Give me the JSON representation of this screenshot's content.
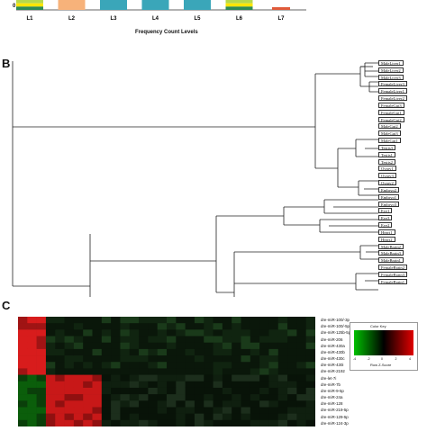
{
  "panel_a": {
    "zero_label": "0",
    "x_axis_label": "Frequency Count Levels",
    "levels": [
      {
        "label": "L1",
        "segments": [
          "#b6d94c",
          "#ffe600",
          "#2e8b57"
        ]
      },
      {
        "label": "L2",
        "segments": [
          "#f7b27a"
        ]
      },
      {
        "label": "L3",
        "segments": [
          "#3aa6b9"
        ]
      },
      {
        "label": "L4",
        "segments": [
          "#3aa6b9"
        ]
      },
      {
        "label": "L5",
        "segments": [
          "#3aa6b9"
        ]
      },
      {
        "label": "L6",
        "segments": [
          "#b6d94c",
          "#ffe600",
          "#2e8b57"
        ]
      },
      {
        "label": "L7",
        "segments": [
          "#e05a3a"
        ]
      }
    ]
  },
  "panel_b": {
    "letter": "B",
    "leaves": [
      "MaleLiver1",
      "MaleLiver2",
      "MaleLiver3",
      "FemaleLiver3",
      "FemaleLiver1",
      "FemaleLiver2",
      "FemaleGut3",
      "FemaleGut1",
      "FemaleGut2",
      "MaleGut2",
      "MaleGut3",
      "MaleGut1",
      "Testis3",
      "Testis1",
      "Testis2",
      "Ovary1",
      "Ovary3",
      "Ovary2",
      "Embryo2",
      "Embryo1",
      "Embryo3",
      "Eye1",
      "Eye3",
      "Eye2",
      "Heart1",
      "Heart2",
      "MaleBrain2",
      "MaleBrain3",
      "MaleBrain1",
      "FemaleBrain2",
      "FemaleBrain3",
      "FemaleBrain1"
    ]
  },
  "panel_c": {
    "letter": "C",
    "genes": [
      "dre-miR-100/-3p",
      "dre-miR-100/-5p",
      "dre-miR-125b-5p",
      "dre-miR-206",
      "dre-miR-430a",
      "dre-miR-430b",
      "dre-miR-430c",
      "dre-miR-430i",
      "dre-miR-2192",
      "dre-let-7i",
      "dre-miR-7b",
      "dre-miR-9-5p",
      "dre-miR-24a",
      "dre-miR-128",
      "dre-miR-219-5p",
      "dre-miR-129-5p",
      "dre-miR-124-3p"
    ],
    "legend_title": "Color Key",
    "legend_ticks": [
      "-4",
      "-2",
      "0",
      "2",
      "4"
    ],
    "legend_subtitle": "Row Z-Score",
    "colors": {
      "low": "#00c000",
      "mid": "#000000",
      "high": "#e00000"
    }
  }
}
